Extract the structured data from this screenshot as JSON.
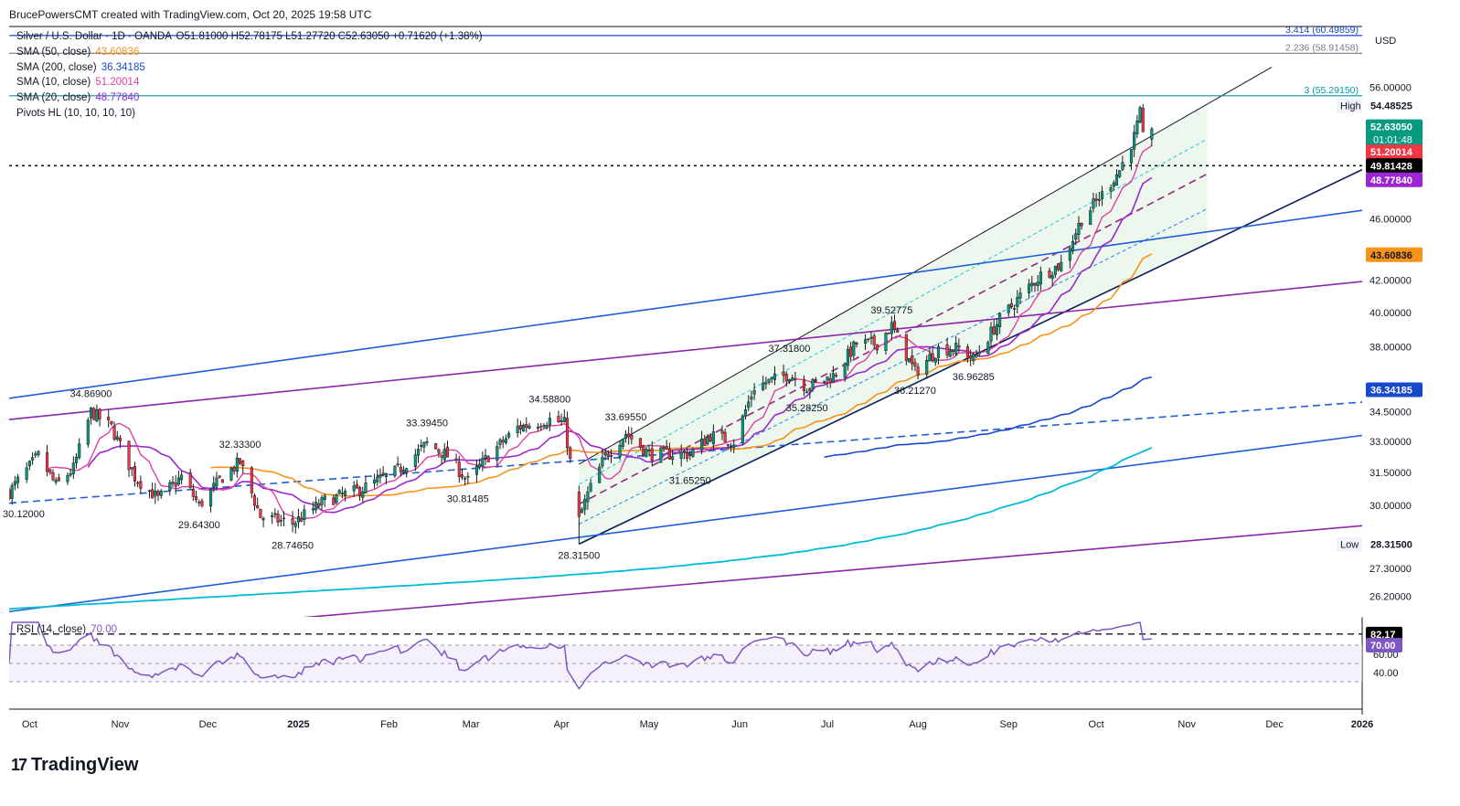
{
  "caption": "BrucePowersCMT created with TradingView.com, Oct 20, 2025 19:58 UTC",
  "brand": "TradingView",
  "brand_mark": "17",
  "legend": {
    "symbol": "Silver / U.S. Dollar · 1D · OANDA",
    "ohlc": "O51.81000 H52.78175 L51.27720 C52.63050 +0.71620 (+1.38%)",
    "sma50_label": "SMA (50, close)",
    "sma50_value": "43.60836",
    "sma200_label": "SMA (200, close)",
    "sma200_value": "36.34185",
    "sma10_label": "SMA (10, close)",
    "sma10_value": "51.20014",
    "sma20_label": "SMA (20, close)",
    "sma20_value": "48.77840",
    "pivots_label": "Pivots HL (10, 10, 10, 10)",
    "rsi_label": "RSI (14, close)",
    "rsi_value": "70.00"
  },
  "colors": {
    "up": "#089981",
    "down": "#f23645",
    "sma50": "#f7931a",
    "sma200": "#1848cc",
    "sma10": "#e040a0",
    "sma20": "#9c27d0",
    "blue_line": "#1f5fd6",
    "purple_line": "#8e24aa",
    "cyan_line": "#00bcd4",
    "channel_fill": "#e8f5e9",
    "rsi": "#7e57c2"
  },
  "chart_data": {
    "type": "candlestick",
    "x_range": [
      "2024-09-24",
      "2025-12-31"
    ],
    "y_range": [
      25.4,
      61.4
    ],
    "y_scale": "log",
    "price_axis_unit": "USD",
    "x_ticks": [
      {
        "d": "2024-10-01",
        "l": "Oct"
      },
      {
        "d": "2024-11-01",
        "l": "Nov"
      },
      {
        "d": "2024-12-01",
        "l": "Dec"
      },
      {
        "d": "2025-01-01",
        "l": "2025"
      },
      {
        "d": "2025-02-01",
        "l": "Feb"
      },
      {
        "d": "2025-03-01",
        "l": "Mar"
      },
      {
        "d": "2025-04-01",
        "l": "Apr"
      },
      {
        "d": "2025-05-01",
        "l": "May"
      },
      {
        "d": "2025-06-01",
        "l": "Jun"
      },
      {
        "d": "2025-07-01",
        "l": "Jul"
      },
      {
        "d": "2025-08-01",
        "l": "Aug"
      },
      {
        "d": "2025-09-01",
        "l": "Sep"
      },
      {
        "d": "2025-10-01",
        "l": "Oct"
      },
      {
        "d": "2025-11-01",
        "l": "Nov"
      },
      {
        "d": "2025-12-01",
        "l": "Dec"
      },
      {
        "d": "2025-12-31",
        "l": "2026"
      }
    ],
    "y_ticks": [
      "56.00000",
      "46.00000",
      "42.00000",
      "40.00000",
      "38.00000",
      "34.50000",
      "33.00000",
      "31.50000",
      "30.00000",
      "27.30000",
      "26.20000"
    ],
    "price_tags": [
      {
        "label": "",
        "value": "54.48525",
        "price": 54.48525,
        "bg": "#ffffff",
        "fg": "#131722",
        "note": "High"
      },
      {
        "label": "",
        "value": "52.63050",
        "price": 52.8,
        "bg": "#089981",
        "fg": "#ffffff",
        "note": "",
        "sub": "01:01:48"
      },
      {
        "label": "",
        "value": "51.20014",
        "price": 50.85,
        "bg": "#f23645",
        "fg": "#ffffff",
        "note": ""
      },
      {
        "label": "",
        "value": "49.81428",
        "price": 49.81428,
        "bg": "#000000",
        "fg": "#ffffff",
        "note": ""
      },
      {
        "label": "",
        "value": "48.77840",
        "price": 48.77,
        "bg": "#9c27d0",
        "fg": "#ffffff",
        "note": ""
      },
      {
        "label": "",
        "value": "43.60836",
        "price": 43.60836,
        "bg": "#f7931a",
        "fg": "#131722",
        "note": ""
      },
      {
        "label": "",
        "value": "36.34185",
        "price": 35.65,
        "bg": "#1848cc",
        "fg": "#ffffff",
        "note": ""
      },
      {
        "label": "",
        "value": "28.31500",
        "price": 28.315,
        "bg": "#ffffff",
        "fg": "#131722",
        "note": "Low"
      }
    ],
    "fib_levels": [
      {
        "text": "3.414 (60.49859)",
        "price": 60.49859,
        "color": "#1848cc"
      },
      {
        "text": "2.236 (58.91458)",
        "price": 58.91458,
        "color": "#787b86"
      },
      {
        "text": "3 (55.29150)",
        "price": 55.2915,
        "color": "#0097a7"
      }
    ],
    "resistance_line": 49.81428,
    "pivot_labels": [
      {
        "d": "2024-10-22",
        "p": 34.869,
        "t": "34.86900",
        "pos": "above"
      },
      {
        "d": "2024-09-29",
        "p": 30.12,
        "t": "30.12000",
        "pos": "below"
      },
      {
        "d": "2024-12-12",
        "p": 32.333,
        "t": "32.33300",
        "pos": "above"
      },
      {
        "d": "2024-11-28",
        "p": 29.643,
        "t": "29.64300",
        "pos": "below"
      },
      {
        "d": "2024-12-30",
        "p": 28.7465,
        "t": "28.74650",
        "pos": "below"
      },
      {
        "d": "2025-02-14",
        "p": 33.3945,
        "t": "33.39450",
        "pos": "above"
      },
      {
        "d": "2025-02-28",
        "p": 30.81485,
        "t": "30.81485",
        "pos": "below"
      },
      {
        "d": "2025-03-28",
        "p": 34.588,
        "t": "34.58800",
        "pos": "above"
      },
      {
        "d": "2025-04-07",
        "p": 28.315,
        "t": "28.31500",
        "pos": "below"
      },
      {
        "d": "2025-04-23",
        "p": 33.6955,
        "t": "33.69550",
        "pos": "above"
      },
      {
        "d": "2025-05-15",
        "p": 31.6525,
        "t": "31.65250",
        "pos": "below"
      },
      {
        "d": "2025-06-18",
        "p": 37.318,
        "t": "37.31800",
        "pos": "above"
      },
      {
        "d": "2025-06-24",
        "p": 35.2825,
        "t": "35.28250",
        "pos": "below"
      },
      {
        "d": "2025-07-23",
        "p": 39.52775,
        "t": "39.52775",
        "pos": "above"
      },
      {
        "d": "2025-07-31",
        "p": 36.2127,
        "t": "36.21270",
        "pos": "below"
      },
      {
        "d": "2025-08-20",
        "p": 36.96285,
        "t": "36.96285",
        "pos": "below"
      }
    ],
    "rsi": {
      "ticks": [
        "60.00",
        "40.00"
      ],
      "levels": [
        70,
        50,
        30
      ],
      "marker_high": "82.17",
      "last": "70.00"
    },
    "anchors": [
      [
        "2024-09-24",
        30.6
      ],
      [
        "2024-10-04",
        32.3
      ],
      [
        "2024-10-10",
        30.9
      ],
      [
        "2024-10-16",
        31.7
      ],
      [
        "2024-10-22",
        34.5
      ],
      [
        "2024-10-29",
        33.7
      ],
      [
        "2024-11-06",
        31.3
      ],
      [
        "2024-11-14",
        30.3
      ],
      [
        "2024-11-22",
        31.3
      ],
      [
        "2024-11-28",
        30.0
      ],
      [
        "2024-12-06",
        31.3
      ],
      [
        "2024-12-12",
        32.0
      ],
      [
        "2024-12-19",
        29.5
      ],
      [
        "2024-12-30",
        29.2
      ],
      [
        "2025-01-10",
        30.2
      ],
      [
        "2025-01-22",
        30.7
      ],
      [
        "2025-02-04",
        31.6
      ],
      [
        "2025-02-14",
        32.9
      ],
      [
        "2025-02-21",
        32.3
      ],
      [
        "2025-02-28",
        31.1
      ],
      [
        "2025-03-07",
        32.3
      ],
      [
        "2025-03-17",
        33.7
      ],
      [
        "2025-03-28",
        34.1
      ],
      [
        "2025-04-02",
        33.9
      ],
      [
        "2025-04-07",
        29.4
      ],
      [
        "2025-04-10",
        30.5
      ],
      [
        "2025-04-16",
        32.3
      ],
      [
        "2025-04-23",
        33.4
      ],
      [
        "2025-05-01",
        32.4
      ],
      [
        "2025-05-09",
        32.4
      ],
      [
        "2025-05-15",
        32.4
      ],
      [
        "2025-05-22",
        33.3
      ],
      [
        "2025-05-30",
        33.0
      ],
      [
        "2025-06-06",
        35.8
      ],
      [
        "2025-06-13",
        36.2
      ],
      [
        "2025-06-18",
        36.5
      ],
      [
        "2025-06-24",
        35.8
      ],
      [
        "2025-07-03",
        36.4
      ],
      [
        "2025-07-11",
        38.2
      ],
      [
        "2025-07-18",
        38.2
      ],
      [
        "2025-07-23",
        39.2
      ],
      [
        "2025-07-31",
        36.6
      ],
      [
        "2025-08-08",
        37.9
      ],
      [
        "2025-08-15",
        37.9
      ],
      [
        "2025-08-20",
        37.3
      ],
      [
        "2025-08-29",
        39.6
      ],
      [
        "2025-09-05",
        41.0
      ],
      [
        "2025-09-12",
        42.3
      ],
      [
        "2025-09-19",
        43.0
      ],
      [
        "2025-09-26",
        46.0
      ],
      [
        "2025-10-03",
        47.7
      ],
      [
        "2025-10-09",
        49.5
      ],
      [
        "2025-10-14",
        52.0
      ],
      [
        "2025-10-16",
        53.8
      ],
      [
        "2025-10-17",
        51.9
      ],
      [
        "2025-10-20",
        52.63
      ]
    ]
  }
}
